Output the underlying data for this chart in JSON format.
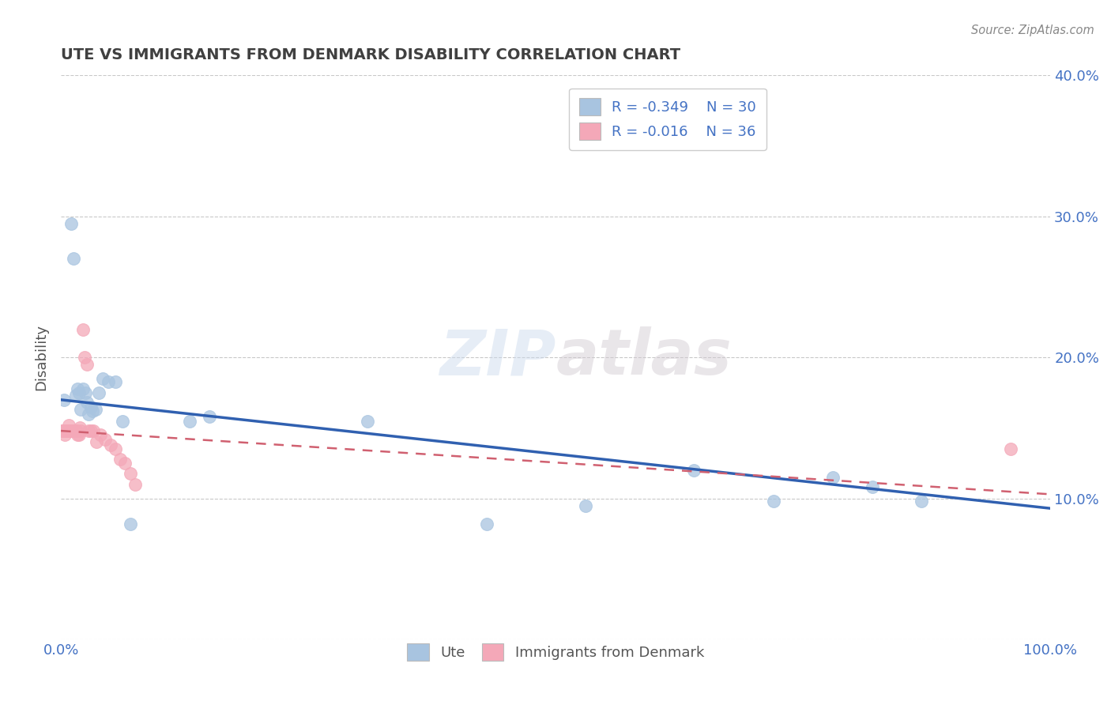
{
  "title": "UTE VS IMMIGRANTS FROM DENMARK DISABILITY CORRELATION CHART",
  "source": "Source: ZipAtlas.com",
  "ylabel": "Disability",
  "xlabel": "",
  "watermark": "ZIPatlas",
  "ute_color": "#a8c4e0",
  "denmark_color": "#f4a8b8",
  "ute_line_color": "#3060b0",
  "denmark_line_color": "#d06070",
  "title_color": "#404040",
  "axis_label_color": "#4472c4",
  "grid_color": "#bbbbbb",
  "xlim": [
    0,
    1.0
  ],
  "ylim": [
    0,
    0.4
  ],
  "ute_scatter_x": [
    0.003,
    0.01,
    0.013,
    0.015,
    0.017,
    0.018,
    0.02,
    0.022,
    0.025,
    0.026,
    0.028,
    0.03,
    0.032,
    0.035,
    0.038,
    0.042,
    0.048,
    0.055,
    0.062,
    0.07,
    0.13,
    0.15,
    0.31,
    0.43,
    0.53,
    0.64,
    0.72,
    0.78,
    0.82,
    0.87
  ],
  "ute_scatter_y": [
    0.17,
    0.295,
    0.27,
    0.173,
    0.178,
    0.175,
    0.163,
    0.178,
    0.175,
    0.168,
    0.16,
    0.165,
    0.162,
    0.163,
    0.175,
    0.185,
    0.183,
    0.183,
    0.155,
    0.082,
    0.155,
    0.158,
    0.155,
    0.082,
    0.095,
    0.12,
    0.098,
    0.115,
    0.108,
    0.098
  ],
  "denmark_scatter_x": [
    0.001,
    0.002,
    0.003,
    0.004,
    0.005,
    0.006,
    0.007,
    0.008,
    0.009,
    0.01,
    0.011,
    0.012,
    0.013,
    0.014,
    0.015,
    0.016,
    0.017,
    0.018,
    0.019,
    0.02,
    0.022,
    0.024,
    0.026,
    0.028,
    0.03,
    0.033,
    0.036,
    0.04,
    0.045,
    0.05,
    0.055,
    0.06,
    0.065,
    0.07,
    0.075,
    0.96
  ],
  "denmark_scatter_y": [
    0.148,
    0.148,
    0.148,
    0.145,
    0.148,
    0.148,
    0.148,
    0.152,
    0.148,
    0.148,
    0.148,
    0.148,
    0.148,
    0.148,
    0.148,
    0.148,
    0.145,
    0.145,
    0.15,
    0.148,
    0.22,
    0.2,
    0.195,
    0.148,
    0.148,
    0.148,
    0.14,
    0.145,
    0.142,
    0.138,
    0.135,
    0.128,
    0.125,
    0.118,
    0.11,
    0.135
  ],
  "background_color": "#ffffff",
  "plot_bg_color": "#ffffff",
  "ute_line_x0": 0.0,
  "ute_line_y0": 0.17,
  "ute_line_x1": 1.0,
  "ute_line_y1": 0.093,
  "denmark_line_x0": 0.0,
  "denmark_line_y0": 0.148,
  "denmark_line_x1": 1.0,
  "denmark_line_y1": 0.103
}
